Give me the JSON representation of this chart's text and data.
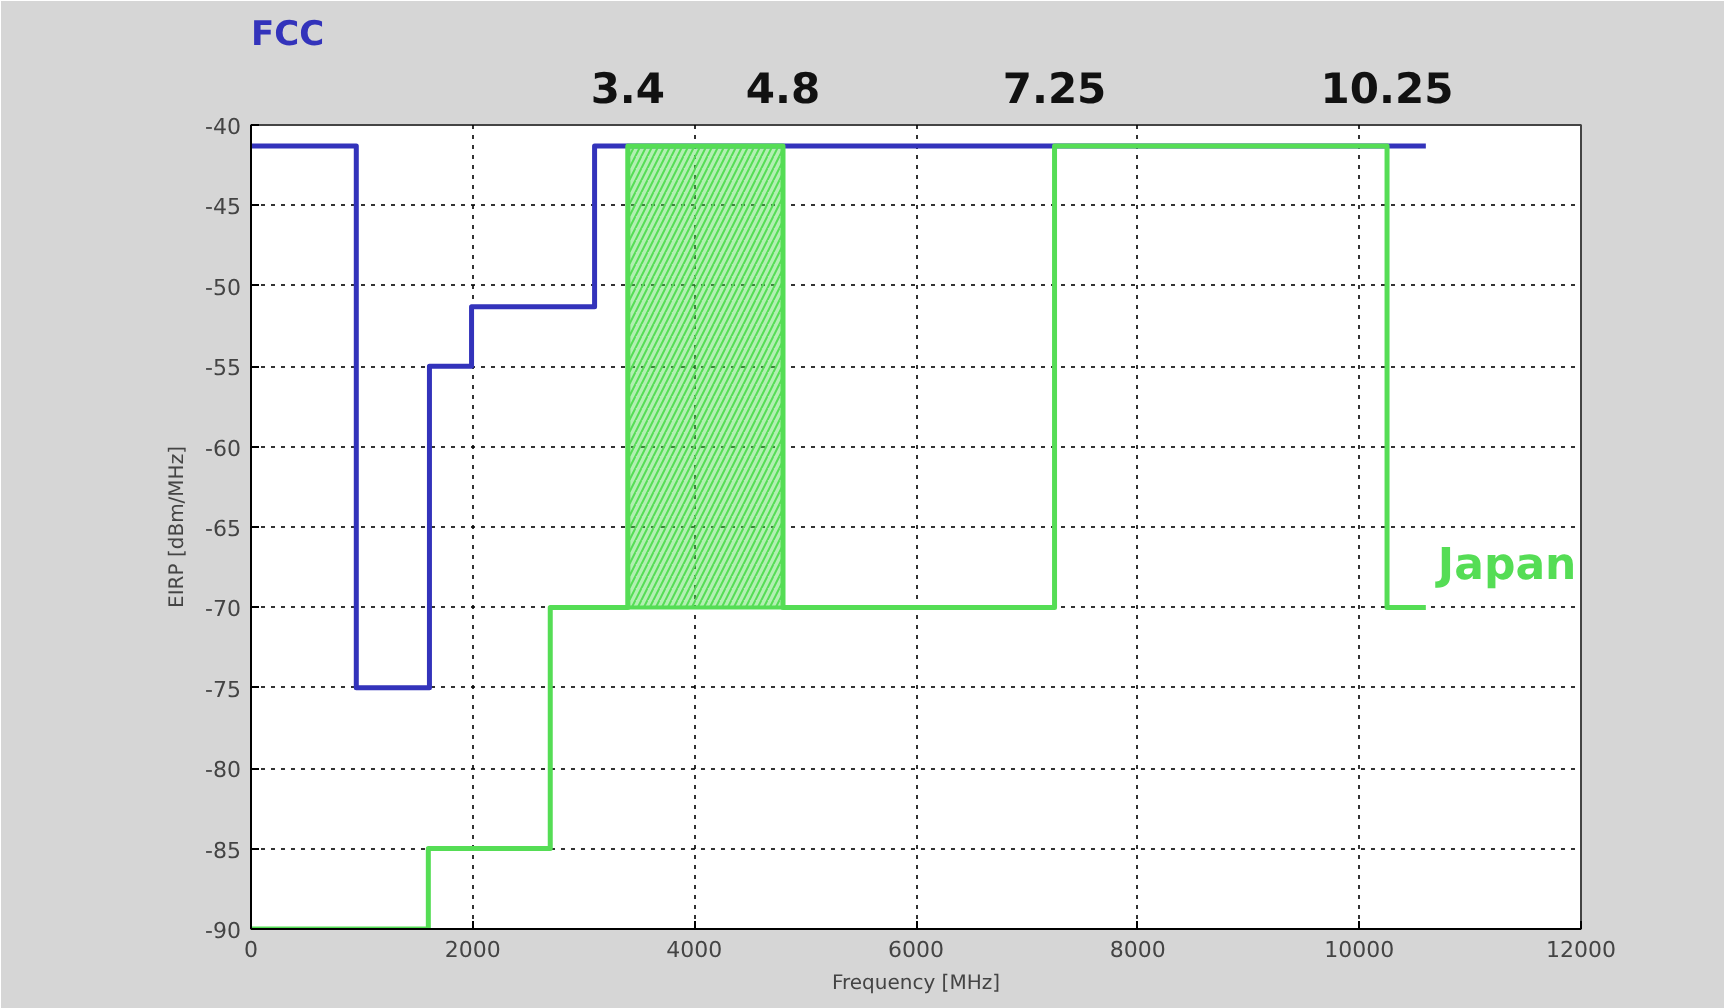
{
  "chart_data": {
    "type": "step",
    "xlabel": "Frequency [MHz]",
    "ylabel": "EIRP [dBm/MHz]",
    "xlim": [
      0,
      12000
    ],
    "ylim": [
      -90,
      -40
    ],
    "xticks": [
      0,
      2000,
      4000,
      6000,
      8000,
      10000,
      12000
    ],
    "yticks": [
      -90,
      -85,
      -80,
      -75,
      -70,
      -65,
      -60,
      -55,
      -50,
      -45,
      -40
    ],
    "grid": true,
    "line_style": "solid",
    "series": [
      {
        "name": "FCC",
        "color": "#3333bb",
        "x": [
          0,
          950,
          1610,
          1990,
          3100,
          10600
        ],
        "values": [
          -41.3,
          -75,
          -55,
          -51.3,
          -41.3,
          -41.3
        ]
      },
      {
        "name": "Japan",
        "color": "#55dd55",
        "x": [
          0,
          1600,
          2700,
          3400,
          4800,
          7250,
          10250,
          10600
        ],
        "values": [
          -90,
          -85,
          -70,
          -41.3,
          -70,
          -41.3,
          -70,
          -70
        ]
      },
      {
        "type": "bar",
        "color": "#55dd55",
        "x": [
          4100
        ],
        "values": [
          28.7
        ],
        "base": [
          -70
        ]
      }
    ],
    "annotations": [
      {
        "text": "3.4",
        "x": 3400,
        "y": -41.3
      },
      {
        "text": "4.8",
        "x": 4800,
        "y": -41.3
      },
      {
        "text": "7.25",
        "x": 7250,
        "y": -41.3
      },
      {
        "text": "10.25",
        "x": 10250,
        "y": -41.3
      }
    ]
  }
}
